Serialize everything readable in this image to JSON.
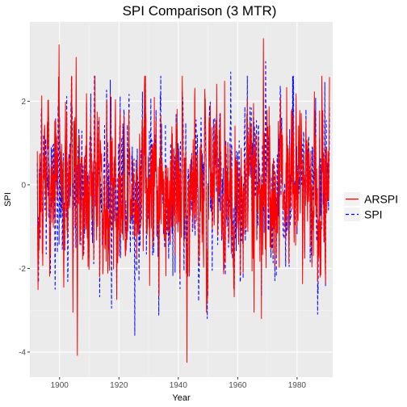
{
  "chart_data": {
    "type": "line",
    "title": "SPI Comparison (3 MTR)",
    "xlabel": "Year",
    "ylabel": "SPI",
    "xlim": [
      1890,
      1992
    ],
    "ylim": [
      -4.6,
      3.9
    ],
    "xticks": [
      1900,
      1920,
      1940,
      1960,
      1980
    ],
    "yticks": [
      2,
      0,
      -2,
      -4
    ],
    "xtick_labels": [
      "1900",
      "1920",
      "1940",
      "1960",
      "1980"
    ],
    "ytick_labels": [
      "2",
      "0",
      "-2",
      "-4"
    ],
    "grid": true,
    "legend": "right",
    "x_range": [
      1892.5,
      1991
    ],
    "series": [
      {
        "name": "ARSPI",
        "color": "#ff0000",
        "dash": "solid",
        "extremes": [
          {
            "x": 1899.8,
            "y": 3.35
          },
          {
            "x": 1905.6,
            "y": 3.05
          },
          {
            "x": 1906.0,
            "y": -4.08
          },
          {
            "x": 1904.5,
            "y": -3.05
          },
          {
            "x": 1942.9,
            "y": -4.25
          },
          {
            "x": 1968.7,
            "y": 3.5
          },
          {
            "x": 1949.5,
            "y": -3.05
          },
          {
            "x": 1965.5,
            "y": -3.05
          }
        ]
      },
      {
        "name": "SPI",
        "color": "#0000ff",
        "dash": "dashed",
        "extremes": [
          {
            "x": 1925.3,
            "y": -3.6
          },
          {
            "x": 1969.4,
            "y": 2.95
          },
          {
            "x": 1957.7,
            "y": 2.7
          },
          {
            "x": 1917.5,
            "y": -2.95
          },
          {
            "x": 1989.3,
            "y": 2.45
          },
          {
            "x": 1898.5,
            "y": -2.5
          }
        ]
      }
    ]
  }
}
